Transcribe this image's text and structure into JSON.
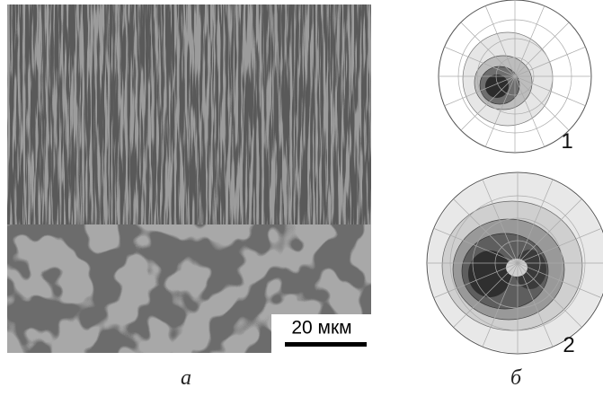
{
  "panels": [
    {
      "label": "а",
      "scale_bar": "20 мкм"
    },
    {
      "label": "б",
      "pole_figures": [
        {
          "label": "1"
        },
        {
          "label": "2"
        }
      ]
    }
  ]
}
